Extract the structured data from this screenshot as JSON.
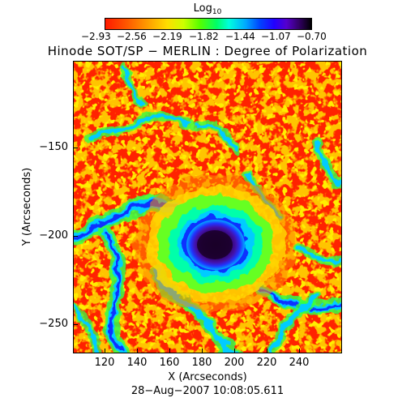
{
  "colorbar": {
    "title_main": "Log",
    "title_sub": "10",
    "tick_labels": [
      "−2.93",
      "−2.56",
      "−2.19",
      "−1.82",
      "−1.44",
      "−1.07",
      "−0.70"
    ]
  },
  "title": "Hinode SOT/SP − MERLIN : Degree of Polarization",
  "axes": {
    "xlabel": "X (Arcseconds)",
    "ylabel": "Y (Arcseconds)",
    "x_ticks": [
      "120",
      "140",
      "160",
      "180",
      "200",
      "220",
      "240"
    ],
    "y_ticks": [
      "−150",
      "−200",
      "−250"
    ]
  },
  "timestamp": "28−Aug−2007 10:08:05.611",
  "colors": {
    "background_red": "#ff2200",
    "orange": "#ff8800",
    "yellow": "#ffdd00",
    "green": "#33ff33",
    "cyan": "#00ddff",
    "blue": "#1133ff",
    "purple": "#5511aa",
    "dark": "#1a0033"
  }
}
